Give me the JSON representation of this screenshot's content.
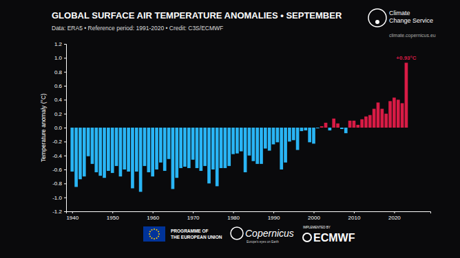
{
  "chart_data": {
    "type": "bar",
    "title": "GLOBAL SURFACE AIR TEMPERATURE ANOMALIES • SEPTEMBER",
    "subtitle": "Data: ERA5 • Reference period: 1991-2020 • Credit: C3S/ECMWF",
    "y_label": "Temperature anomaly (°C)",
    "x": [
      1940,
      1941,
      1942,
      1943,
      1944,
      1945,
      1946,
      1947,
      1948,
      1949,
      1950,
      1951,
      1952,
      1953,
      1954,
      1955,
      1956,
      1957,
      1958,
      1959,
      1960,
      1961,
      1962,
      1963,
      1964,
      1965,
      1966,
      1967,
      1968,
      1969,
      1970,
      1971,
      1972,
      1973,
      1974,
      1975,
      1976,
      1977,
      1978,
      1979,
      1980,
      1981,
      1982,
      1983,
      1984,
      1985,
      1986,
      1987,
      1988,
      1989,
      1990,
      1991,
      1992,
      1993,
      1994,
      1995,
      1996,
      1997,
      1998,
      1999,
      2000,
      2001,
      2002,
      2003,
      2004,
      2005,
      2006,
      2007,
      2008,
      2009,
      2010,
      2011,
      2012,
      2013,
      2014,
      2015,
      2016,
      2017,
      2018,
      2019,
      2020,
      2021,
      2022,
      2023
    ],
    "values": [
      -0.63,
      -0.85,
      -0.74,
      -0.7,
      -0.41,
      -0.52,
      -0.64,
      -0.69,
      -0.72,
      -0.62,
      -0.65,
      -0.55,
      -0.7,
      -0.6,
      -0.63,
      -0.87,
      -0.63,
      -0.92,
      -0.55,
      -0.64,
      -0.7,
      -0.6,
      -0.5,
      -0.62,
      -0.45,
      -0.88,
      -0.72,
      -0.58,
      -0.56,
      -0.58,
      -0.46,
      -0.58,
      -0.62,
      -0.55,
      -0.8,
      -0.6,
      -0.84,
      -0.58,
      -0.58,
      -0.55,
      -0.38,
      -0.37,
      -0.34,
      -0.64,
      -0.4,
      -0.48,
      -0.52,
      -0.52,
      -0.3,
      -0.33,
      -0.24,
      -0.21,
      -0.6,
      -0.5,
      -0.2,
      -0.18,
      -0.32,
      -0.05,
      -0.04,
      -0.21,
      -0.23,
      -0.01,
      0.02,
      0.07,
      -0.04,
      0.13,
      0.06,
      -0.02,
      -0.08,
      0.1,
      0.1,
      0.04,
      0.12,
      0.16,
      0.18,
      0.27,
      0.36,
      0.27,
      0.2,
      0.38,
      0.43,
      0.4,
      0.35,
      0.93
    ],
    "colors": [
      "#29b5f5",
      "#29b5f5",
      "#29b5f5",
      "#29b5f5",
      "#29b5f5",
      "#29b5f5",
      "#29b5f5",
      "#29b5f5",
      "#29b5f5",
      "#29b5f5",
      "#29b5f5",
      "#29b5f5",
      "#29b5f5",
      "#29b5f5",
      "#29b5f5",
      "#29b5f5",
      "#29b5f5",
      "#29b5f5",
      "#29b5f5",
      "#29b5f5",
      "#29b5f5",
      "#29b5f5",
      "#29b5f5",
      "#29b5f5",
      "#29b5f5",
      "#29b5f5",
      "#29b5f5",
      "#29b5f5",
      "#29b5f5",
      "#29b5f5",
      "#29b5f5",
      "#29b5f5",
      "#29b5f5",
      "#29b5f5",
      "#29b5f5",
      "#29b5f5",
      "#29b5f5",
      "#29b5f5",
      "#29b5f5",
      "#29b5f5",
      "#29b5f5",
      "#29b5f5",
      "#29b5f5",
      "#29b5f5",
      "#29b5f5",
      "#29b5f5",
      "#29b5f5",
      "#29b5f5",
      "#29b5f5",
      "#29b5f5",
      "#29b5f5",
      "#29b5f5",
      "#29b5f5",
      "#29b5f5",
      "#29b5f5",
      "#29b5f5",
      "#29b5f5",
      "#29b5f5",
      "#29b5f5",
      "#29b5f5",
      "#29b5f5",
      "#29b5f5",
      "#d81b45",
      "#d81b45",
      "#29b5f5",
      "#d81b45",
      "#d81b45",
      "#29b5f5",
      "#29b5f5",
      "#d81b45",
      "#d81b45",
      "#d81b45",
      "#d81b45",
      "#d81b45",
      "#d81b45",
      "#d81b45",
      "#d81b45",
      "#d81b45",
      "#d81b45",
      "#d81b45",
      "#d81b45",
      "#d81b45",
      "#d81b45",
      "#d81b45"
    ],
    "xlim": [
      1938.5,
      2029
    ],
    "xticks": [
      1940,
      1950,
      1960,
      1970,
      1980,
      1990,
      2000,
      2010,
      2020
    ],
    "ylim": [
      -1.2,
      1.2
    ],
    "yticks": [
      1.2,
      {
        "value": 1,
        "label": "1.0"
      },
      0.8,
      0.6,
      0.4,
      0.2,
      {
        "value": 0,
        "label": "0.0"
      },
      -0.2,
      -0.4,
      -0.6,
      -0.8,
      {
        "value": -1,
        "label": "-1.0"
      },
      -1.2
    ],
    "grid": false,
    "annotations": [
      {
        "text": "+0.93°C",
        "x": 2023,
        "y": 0.93,
        "color": "#d81b45"
      }
    ],
    "brand": {
      "service": [
        "Climate",
        "Change Service"
      ],
      "url": "climate.copernicus.eu"
    },
    "footer": {
      "eu": [
        "PROGRAMME OF",
        "THE EUROPEAN UNION"
      ],
      "copernicus": "Copernicus",
      "copernicus_tagline": "Europe's eyes on Earth",
      "implemented": "IMPLEMENTED BY",
      "ecmwf": "ECMWF"
    }
  }
}
